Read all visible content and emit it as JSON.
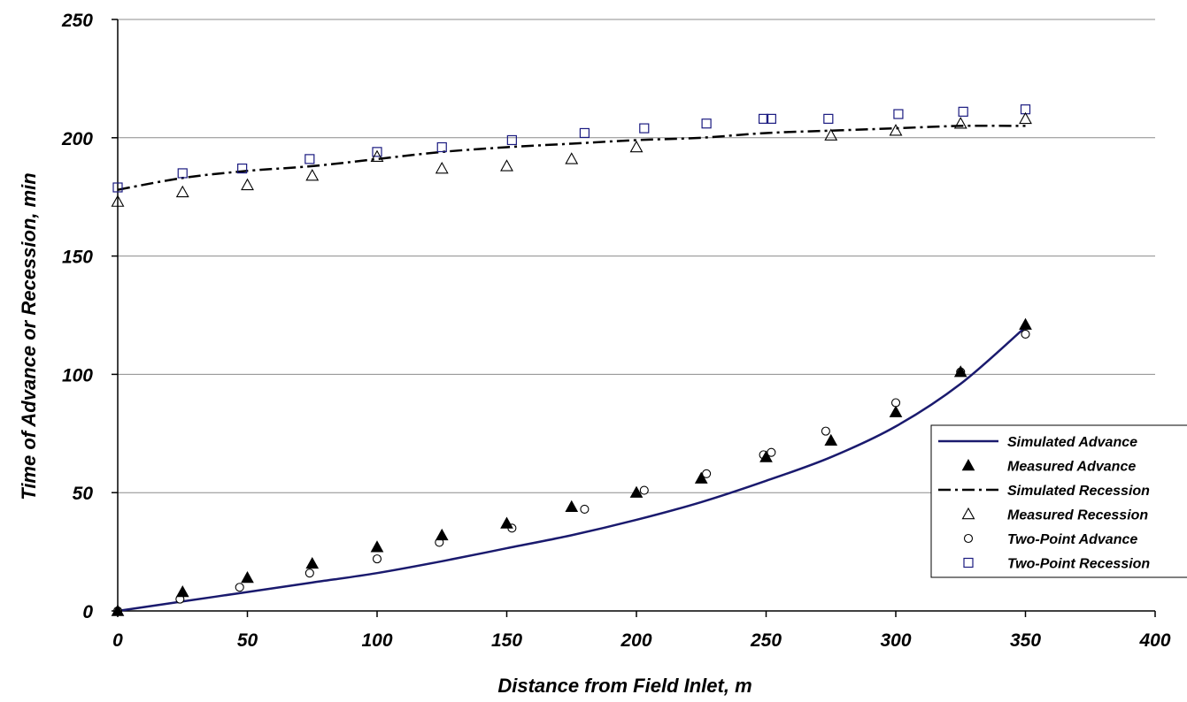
{
  "chart_data": {
    "type": "line",
    "xlabel": "Distance from Field Inlet, m",
    "ylabel": "Time of Advance or Recession, min",
    "xlim": [
      0,
      400
    ],
    "ylim": [
      0,
      250
    ],
    "x_ticks": [
      "0",
      "50",
      "100",
      "150",
      "200",
      "250",
      "300",
      "350",
      "400"
    ],
    "y_ticks": [
      "0",
      "50",
      "100",
      "150",
      "200",
      "250"
    ],
    "grid": "horizontal",
    "legend_position": "right",
    "series": [
      {
        "name": "Simulated Advance",
        "style": "solid-line",
        "color": "#1a1a6e",
        "x": [
          0,
          25,
          50,
          75,
          100,
          125,
          150,
          175,
          200,
          225,
          250,
          275,
          300,
          325,
          350
        ],
        "y": [
          0,
          4,
          8,
          12,
          16,
          21,
          26.5,
          32,
          38.5,
          46,
          55,
          65,
          78,
          96,
          120
        ]
      },
      {
        "name": "Measured Advance",
        "style": "filled-triangle",
        "color": "#000000",
        "x": [
          0,
          25,
          50,
          75,
          100,
          125,
          150,
          175,
          200,
          225,
          250,
          275,
          300,
          325,
          350
        ],
        "y": [
          0,
          8,
          14,
          20,
          27,
          32,
          37,
          44,
          50,
          56,
          65,
          72,
          84,
          101,
          121
        ]
      },
      {
        "name": "Simulated Recession",
        "style": "dash-dot-line",
        "color": "#000000",
        "x": [
          0,
          25,
          50,
          75,
          100,
          125,
          150,
          175,
          200,
          225,
          250,
          275,
          300,
          325,
          350
        ],
        "y": [
          178,
          183,
          186,
          188,
          191,
          194,
          196,
          197.5,
          199,
          200,
          202,
          203,
          204,
          205,
          205
        ]
      },
      {
        "name": "Measured Recession",
        "style": "open-triangle",
        "color": "#000000",
        "x": [
          0,
          25,
          50,
          75,
          100,
          125,
          150,
          175,
          200,
          275,
          300,
          325,
          350
        ],
        "y": [
          173,
          177,
          180,
          184,
          192,
          187,
          188,
          191,
          196,
          201,
          203,
          206,
          208
        ]
      },
      {
        "name": "Two-Point Advance",
        "style": "open-circle",
        "color": "#000000",
        "x": [
          0,
          24,
          47,
          74,
          100,
          124,
          152,
          180,
          203,
          227,
          249,
          252,
          273,
          300,
          325,
          350
        ],
        "y": [
          0,
          5,
          10,
          16,
          22,
          29,
          35,
          43,
          51,
          58,
          66,
          67,
          76,
          88,
          101,
          117
        ]
      },
      {
        "name": "Two-Point Recession",
        "style": "open-square",
        "color": "#1a1a80",
        "x": [
          0,
          25,
          48,
          74,
          100,
          125,
          152,
          180,
          203,
          227,
          249,
          252,
          274,
          301,
          326,
          350
        ],
        "y": [
          179,
          185,
          187,
          191,
          194,
          196,
          199,
          202,
          204,
          206,
          208,
          208,
          208,
          210,
          211,
          212
        ]
      }
    ]
  }
}
